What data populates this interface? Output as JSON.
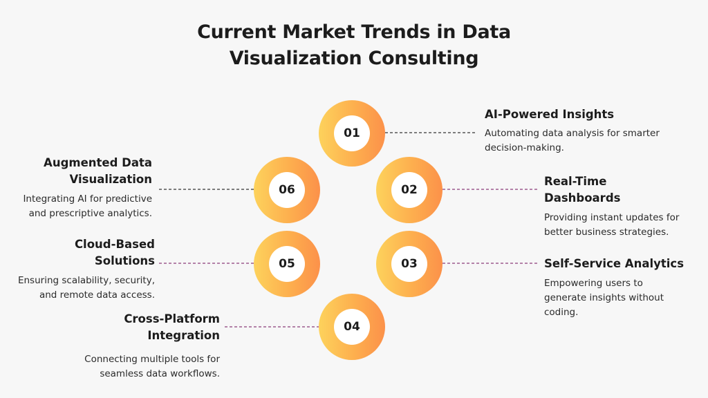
{
  "title": "Current Market Trends in Data Visualization Consulting",
  "colors": {
    "background": "#f7f7f7",
    "gradient_start": "#fdd25c",
    "gradient_end": "#fc914a",
    "connector_dark": "#333333",
    "connector_purple": "#8a3b78"
  },
  "items": [
    {
      "number": "01",
      "heading": "AI-Powered Insights",
      "description": "Automating data analysis for smarter decision-making."
    },
    {
      "number": "02",
      "heading": "Real-Time Dashboards",
      "description": "Providing instant updates for better business strategies."
    },
    {
      "number": "03",
      "heading": "Self-Service Analytics",
      "description": "Empowering users to generate insights without coding."
    },
    {
      "number": "04",
      "heading": "Cross-Platform Integration",
      "description": "Connecting multiple tools for seamless data workflows."
    },
    {
      "number": "05",
      "heading": "Cloud-Based Solutions",
      "description": "Ensuring scalability, security, and remote data access."
    },
    {
      "number": "06",
      "heading": "Augmented Data Visualization",
      "description": "Integrating AI for predictive and prescriptive analytics."
    }
  ]
}
